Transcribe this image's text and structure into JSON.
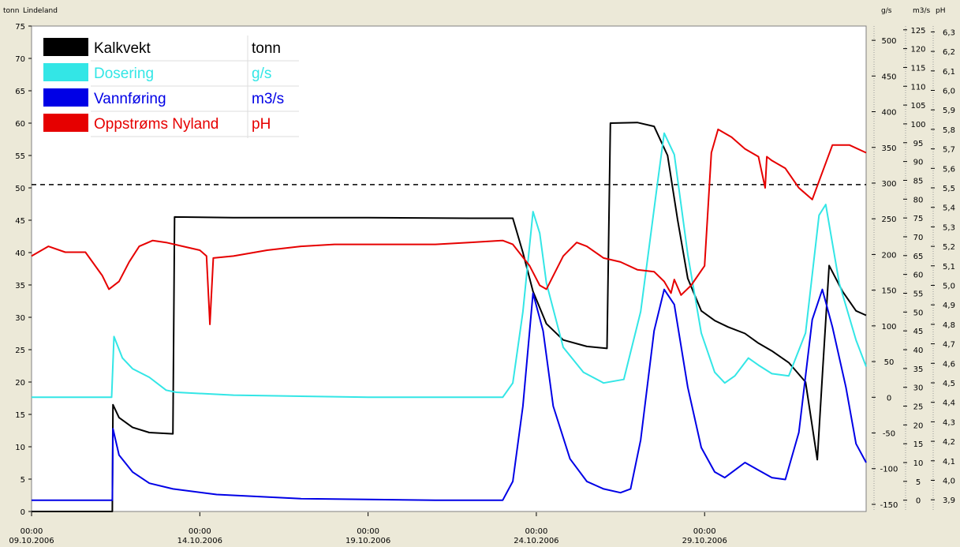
{
  "header": {
    "left_unit": "tonn",
    "station": "Lindeland",
    "right_units": [
      "g/s",
      "m3/s",
      "pH"
    ]
  },
  "colors": {
    "kalkvekt": "#000000",
    "dosering": "#33e6e6",
    "vannforing": "#0000e6",
    "ph": "#e60000",
    "threshold": "#000000",
    "plot_bg": "#ffffff",
    "frame_bg": "#ece9d8"
  },
  "chart_data": {
    "type": "line",
    "legend_placement": "top-left",
    "grid": false,
    "x_start": "09.10.2006 00:00",
    "x_unit": "days",
    "x_range": [
      0,
      24.8
    ],
    "x_ticks": [
      {
        "x": 0,
        "time": "00:00",
        "date": "09.10.2006"
      },
      {
        "x": 5,
        "time": "00:00",
        "date": "14.10.2006"
      },
      {
        "x": 10,
        "time": "00:00",
        "date": "19.10.2006"
      },
      {
        "x": 15,
        "time": "00:00",
        "date": "24.10.2006"
      },
      {
        "x": 20,
        "time": "00:00",
        "date": "29.10.2006"
      }
    ],
    "axes": {
      "tonn": {
        "range": [
          0,
          75
        ],
        "ticks": [
          0,
          5,
          10,
          15,
          20,
          25,
          30,
          35,
          40,
          45,
          50,
          55,
          60,
          65,
          70,
          75
        ]
      },
      "gs": {
        "range": [
          -160,
          520
        ],
        "ticks": [
          -150,
          -100,
          -50,
          0,
          50,
          100,
          150,
          200,
          250,
          300,
          350,
          400,
          450,
          500
        ]
      },
      "m3s": {
        "range": [
          -3,
          126
        ],
        "ticks": [
          0,
          5,
          10,
          15,
          20,
          25,
          30,
          35,
          40,
          45,
          50,
          55,
          60,
          65,
          70,
          75,
          80,
          85,
          90,
          95,
          100,
          105,
          110,
          115,
          120,
          125
        ]
      },
      "ph": {
        "range": [
          3.84,
          6.33
        ],
        "ticks": [
          "3,9",
          "4,0",
          "4,1",
          "4,2",
          "4,3",
          "4,4",
          "4,5",
          "4,6",
          "4,7",
          "4,8",
          "4,9",
          "5,0",
          "5,1",
          "5,2",
          "5,3",
          "5,4",
          "5,5",
          "5,6",
          "5,7",
          "5,8",
          "5,9",
          "6,0",
          "6,1",
          "6,2",
          "6,3"
        ]
      }
    },
    "threshold": {
      "axis": "tonn",
      "value": 50.5
    },
    "series": [
      {
        "name": "Kalkvekt",
        "unit": "tonn",
        "axis": "tonn",
        "color_key": "kalkvekt",
        "points": [
          [
            0,
            0
          ],
          [
            2.3,
            0
          ],
          [
            2.4,
            0
          ],
          [
            2.42,
            16.5
          ],
          [
            2.6,
            14.5
          ],
          [
            3,
            13
          ],
          [
            3.5,
            12.2
          ],
          [
            4.2,
            12
          ],
          [
            4.25,
            45.5
          ],
          [
            6,
            45.4
          ],
          [
            10,
            45.4
          ],
          [
            13,
            45.3
          ],
          [
            14.3,
            45.3
          ],
          [
            14.6,
            40
          ],
          [
            14.9,
            34
          ],
          [
            15.3,
            29
          ],
          [
            15.8,
            26.5
          ],
          [
            16.5,
            25.5
          ],
          [
            17.1,
            25.2
          ],
          [
            17.2,
            60
          ],
          [
            18,
            60.1
          ],
          [
            18.5,
            59.5
          ],
          [
            18.9,
            55
          ],
          [
            19.2,
            45
          ],
          [
            19.5,
            36
          ],
          [
            19.9,
            31
          ],
          [
            20.3,
            29.5
          ],
          [
            20.7,
            28.5
          ],
          [
            21.2,
            27.5
          ],
          [
            21.6,
            26
          ],
          [
            22,
            24.8
          ],
          [
            22.5,
            23
          ],
          [
            23,
            20
          ],
          [
            23.35,
            8
          ],
          [
            23.5,
            21
          ],
          [
            23.7,
            38
          ],
          [
            24.1,
            34
          ],
          [
            24.5,
            31
          ],
          [
            24.8,
            30.3
          ]
        ]
      },
      {
        "name": "Dosering",
        "unit": "g/s",
        "axis": "gs",
        "color_key": "dosering",
        "points": [
          [
            0,
            0
          ],
          [
            2.3,
            0
          ],
          [
            2.38,
            0
          ],
          [
            2.45,
            85
          ],
          [
            2.7,
            55
          ],
          [
            3,
            40
          ],
          [
            3.5,
            28
          ],
          [
            4,
            10
          ],
          [
            4.3,
            7
          ],
          [
            6,
            3
          ],
          [
            10,
            0
          ],
          [
            14,
            0
          ],
          [
            14.3,
            20
          ],
          [
            14.6,
            120
          ],
          [
            14.9,
            260
          ],
          [
            15.1,
            230
          ],
          [
            15.3,
            160
          ],
          [
            15.8,
            70
          ],
          [
            16.4,
            35
          ],
          [
            17,
            20
          ],
          [
            17.6,
            25
          ],
          [
            18.1,
            120
          ],
          [
            18.6,
            300
          ],
          [
            18.8,
            370
          ],
          [
            19.1,
            340
          ],
          [
            19.5,
            200
          ],
          [
            19.9,
            90
          ],
          [
            20.3,
            35
          ],
          [
            20.6,
            20
          ],
          [
            20.9,
            30
          ],
          [
            21.3,
            55
          ],
          [
            21.6,
            45
          ],
          [
            22,
            33
          ],
          [
            22.5,
            30
          ],
          [
            23,
            90
          ],
          [
            23.4,
            255
          ],
          [
            23.6,
            270
          ],
          [
            24,
            160
          ],
          [
            24.5,
            80
          ],
          [
            24.8,
            43
          ]
        ]
      },
      {
        "name": "Vannføring",
        "unit": "m3/s",
        "axis": "m3s",
        "color_key": "vannforing",
        "points": [
          [
            0,
            0
          ],
          [
            2.3,
            0
          ],
          [
            2.4,
            0
          ],
          [
            2.42,
            19
          ],
          [
            2.6,
            12
          ],
          [
            3,
            7.5
          ],
          [
            3.5,
            4.5
          ],
          [
            4.2,
            3
          ],
          [
            5.5,
            1.5
          ],
          [
            8,
            0.4
          ],
          [
            12,
            0
          ],
          [
            14,
            0
          ],
          [
            14.3,
            5
          ],
          [
            14.6,
            25
          ],
          [
            14.9,
            55
          ],
          [
            15.2,
            45
          ],
          [
            15.5,
            25
          ],
          [
            16,
            11
          ],
          [
            16.5,
            5
          ],
          [
            17,
            3
          ],
          [
            17.5,
            2
          ],
          [
            17.8,
            3
          ],
          [
            18.1,
            16
          ],
          [
            18.5,
            45
          ],
          [
            18.8,
            56
          ],
          [
            19.1,
            52
          ],
          [
            19.5,
            30
          ],
          [
            19.9,
            14
          ],
          [
            20.3,
            7.5
          ],
          [
            20.6,
            6
          ],
          [
            20.9,
            8
          ],
          [
            21.2,
            10
          ],
          [
            21.6,
            8
          ],
          [
            22,
            6
          ],
          [
            22.4,
            5.5
          ],
          [
            22.8,
            18
          ],
          [
            23.2,
            48
          ],
          [
            23.5,
            56
          ],
          [
            23.8,
            46
          ],
          [
            24.2,
            30
          ],
          [
            24.5,
            15
          ],
          [
            24.8,
            10
          ]
        ]
      },
      {
        "name": "Oppstrøms Nyland",
        "unit": "pH",
        "axis": "ph",
        "color_key": "ph",
        "points": [
          [
            0,
            5.15
          ],
          [
            0.5,
            5.2
          ],
          [
            1,
            5.17
          ],
          [
            1.6,
            5.17
          ],
          [
            2.1,
            5.05
          ],
          [
            2.3,
            4.98
          ],
          [
            2.6,
            5.02
          ],
          [
            2.9,
            5.12
          ],
          [
            3.2,
            5.2
          ],
          [
            3.6,
            5.23
          ],
          [
            4,
            5.22
          ],
          [
            4.5,
            5.2
          ],
          [
            5,
            5.18
          ],
          [
            5.2,
            5.15
          ],
          [
            5.3,
            4.8
          ],
          [
            5.4,
            5.14
          ],
          [
            6,
            5.15
          ],
          [
            7,
            5.18
          ],
          [
            8,
            5.2
          ],
          [
            9,
            5.21
          ],
          [
            10,
            5.21
          ],
          [
            11,
            5.21
          ],
          [
            12,
            5.21
          ],
          [
            13,
            5.22
          ],
          [
            14,
            5.23
          ],
          [
            14.3,
            5.21
          ],
          [
            14.8,
            5.1
          ],
          [
            15.1,
            5.0
          ],
          [
            15.3,
            4.98
          ],
          [
            15.8,
            5.15
          ],
          [
            16.2,
            5.22
          ],
          [
            16.5,
            5.2
          ],
          [
            17,
            5.14
          ],
          [
            17.5,
            5.12
          ],
          [
            18,
            5.08
          ],
          [
            18.5,
            5.07
          ],
          [
            18.8,
            5.02
          ],
          [
            19,
            4.96
          ],
          [
            19.1,
            5.03
          ],
          [
            19.3,
            4.95
          ],
          [
            19.6,
            5.0
          ],
          [
            20,
            5.1
          ],
          [
            20.2,
            5.68
          ],
          [
            20.4,
            5.8
          ],
          [
            20.8,
            5.76
          ],
          [
            21.2,
            5.7
          ],
          [
            21.6,
            5.66
          ],
          [
            21.8,
            5.5
          ],
          [
            21.85,
            5.66
          ],
          [
            22,
            5.64
          ],
          [
            22.4,
            5.6
          ],
          [
            22.8,
            5.5
          ],
          [
            23.2,
            5.44
          ],
          [
            23.5,
            5.58
          ],
          [
            23.8,
            5.72
          ],
          [
            24.3,
            5.72
          ],
          [
            24.8,
            5.68
          ]
        ]
      }
    ]
  }
}
